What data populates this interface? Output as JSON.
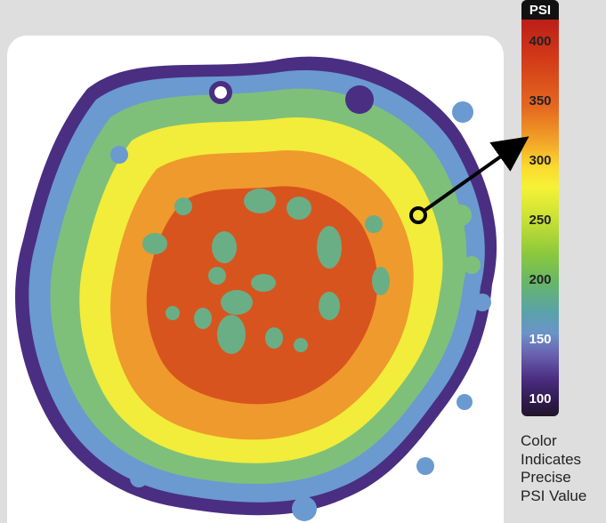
{
  "legend": {
    "header": "PSI",
    "ticks": [
      "400",
      "350",
      "300",
      "250",
      "200",
      "150",
      "100"
    ]
  },
  "caption": {
    "line1": "Color",
    "line2": "Indicates",
    "line3": "Precise",
    "line4": "PSI Value"
  },
  "colors": {
    "background": "#dedede",
    "panel": "#ffffff",
    "ring_outer": "#4a2e82",
    "ring_blue": "#6a9ad0",
    "ring_green": "#7ec07a",
    "ring_yellow": "#f2ec3a",
    "ring_orange": "#ef9a2c",
    "ring_red": "#d8541e",
    "arrow": "#000000"
  },
  "icons": {
    "pointer_marker": "circle-marker-icon",
    "arrow": "arrow-icon"
  }
}
